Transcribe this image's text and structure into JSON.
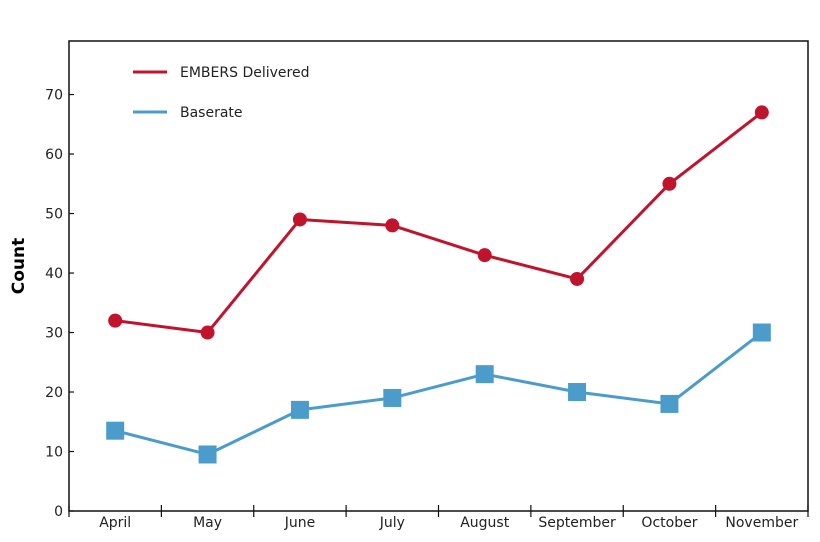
{
  "chart_data": {
    "type": "line",
    "title": "",
    "xlabel": "",
    "ylabel": "Count",
    "categories": [
      "April",
      "May",
      "June",
      "July",
      "August",
      "September",
      "October",
      "November"
    ],
    "ylim": [
      0,
      79
    ],
    "yticks": [
      0,
      10,
      20,
      30,
      40,
      50,
      60,
      70
    ],
    "grid": false,
    "legend": "top-left",
    "series": [
      {
        "name": "EMBERS Delivered",
        "values": [
          32,
          30,
          49,
          48,
          43,
          39,
          55,
          67
        ],
        "color": "#c0142d",
        "marker": "circle"
      },
      {
        "name": "Baserate",
        "values": [
          13.5,
          9.5,
          17,
          19,
          23,
          20,
          18,
          30
        ],
        "color": "#4b9ccb",
        "marker": "square"
      }
    ]
  }
}
